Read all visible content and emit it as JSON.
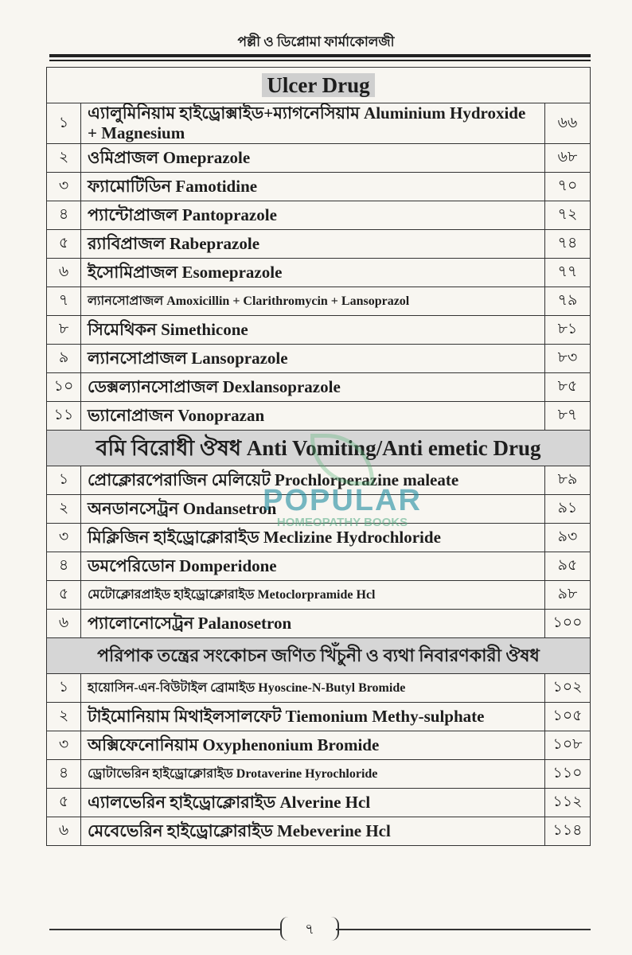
{
  "running_head": "পল্লী ও ডিপ্লোমা ফার্মাকোলজী",
  "sections": [
    {
      "title": "Ulcer Drug",
      "rows": [
        {
          "sn": "১",
          "name": "এ্যালুমিনিয়াম হাইড্রোক্সাইড+ম্যাগনেসিয়াম Aluminium Hydroxide + Magnesium",
          "page": "৬৬"
        },
        {
          "sn": "২",
          "name": "ওমিপ্রাজল Omeprazole",
          "page": "৬৮"
        },
        {
          "sn": "৩",
          "name": "ফ্যামোটিডিন Famotidine",
          "page": "৭০"
        },
        {
          "sn": "৪",
          "name": "প্যান্টোপ্রাজল Pantoprazole",
          "page": "৭২"
        },
        {
          "sn": "৫",
          "name": "র‌্যাবিপ্রাজল Rabeprazole",
          "page": "৭৪"
        },
        {
          "sn": "৬",
          "name": "ইসোমিপ্রাজল Esomeprazole",
          "page": "৭৭"
        },
        {
          "sn": "৭",
          "name": "ল্যানসোপ্রাজল Amoxicillin + Clarithromycin + Lansoprazol",
          "page": "৭৯"
        },
        {
          "sn": "৮",
          "name": "সিমেথিকন Simethicone",
          "page": "৮১"
        },
        {
          "sn": "৯",
          "name": "ল্যানসোপ্রাজল Lansoprazole",
          "page": "৮৩"
        },
        {
          "sn": "১০",
          "name": "ডেক্সল্যানসোপ্রাজল Dexlansoprazole",
          "page": "৮৫"
        },
        {
          "sn": "১১",
          "name": "ভ্যানোপ্রাজন Vonoprazan",
          "page": "৮৭"
        }
      ]
    },
    {
      "title": "বমি বিরোধী ঔষধ Anti Vomiting/Anti emetic Drug",
      "rows": [
        {
          "sn": "১",
          "name": "প্রোক্লোরপেরাজিন মেলিয়েট Prochlorperazine maleate",
          "page": "৮৯"
        },
        {
          "sn": "২",
          "name": "অনডানসেট্রন Ondansetron",
          "page": "৯১"
        },
        {
          "sn": "৩",
          "name": "মিক্লিজিন হাইড্রোক্লোরাইড Meclizine Hydrochloride",
          "page": "৯৩"
        },
        {
          "sn": "৪",
          "name": "ডমপেরিডোন Domperidone",
          "page": "৯৫"
        },
        {
          "sn": "৫",
          "name": "মেটোক্লোরপ্রাইড হাইড্রোক্লোরাইড Metoclorpramide Hcl",
          "page": "৯৮"
        },
        {
          "sn": "৬",
          "name": "প্যালোনোসেট্রন Palanosetron",
          "page": "১০০"
        }
      ]
    },
    {
      "title": "পরিপাক তন্ত্রের সংকোচন জণিত খিঁচুনী ও ব্যথা নিবারণকারী ঔষধ",
      "rows": [
        {
          "sn": "১",
          "name": "হায়োসিন-এন-বিউটাইল ব্রোমাইড Hyoscine-N-Butyl Bromide",
          "page": "১০২"
        },
        {
          "sn": "২",
          "name": "টাইমোনিয়াম মিথাইলসালফেট Tiemonium Methy-sulphate",
          "page": "১০৫"
        },
        {
          "sn": "৩",
          "name": "অক্সিফেনোনিয়াম Oxyphenonium Bromide",
          "page": "১০৮"
        },
        {
          "sn": "৪",
          "name": "ড্রোটাভেরিন হাইড্রোক্লোরাইড Drotaverine Hyrochloride",
          "page": "১১০"
        },
        {
          "sn": "৫",
          "name": "এ্যালভেরিন হাইড্রোক্লোরাইড Alverine Hcl",
          "page": "১১২"
        },
        {
          "sn": "৬",
          "name": "মেবেভেরিন হাইড্রোক্লোরাইড Mebeverine Hcl",
          "page": "১১৪"
        }
      ]
    }
  ],
  "watermark": {
    "line1": "POPULAR",
    "line2": "HOMEOPATHY BOOKS"
  },
  "page_number": "৭"
}
